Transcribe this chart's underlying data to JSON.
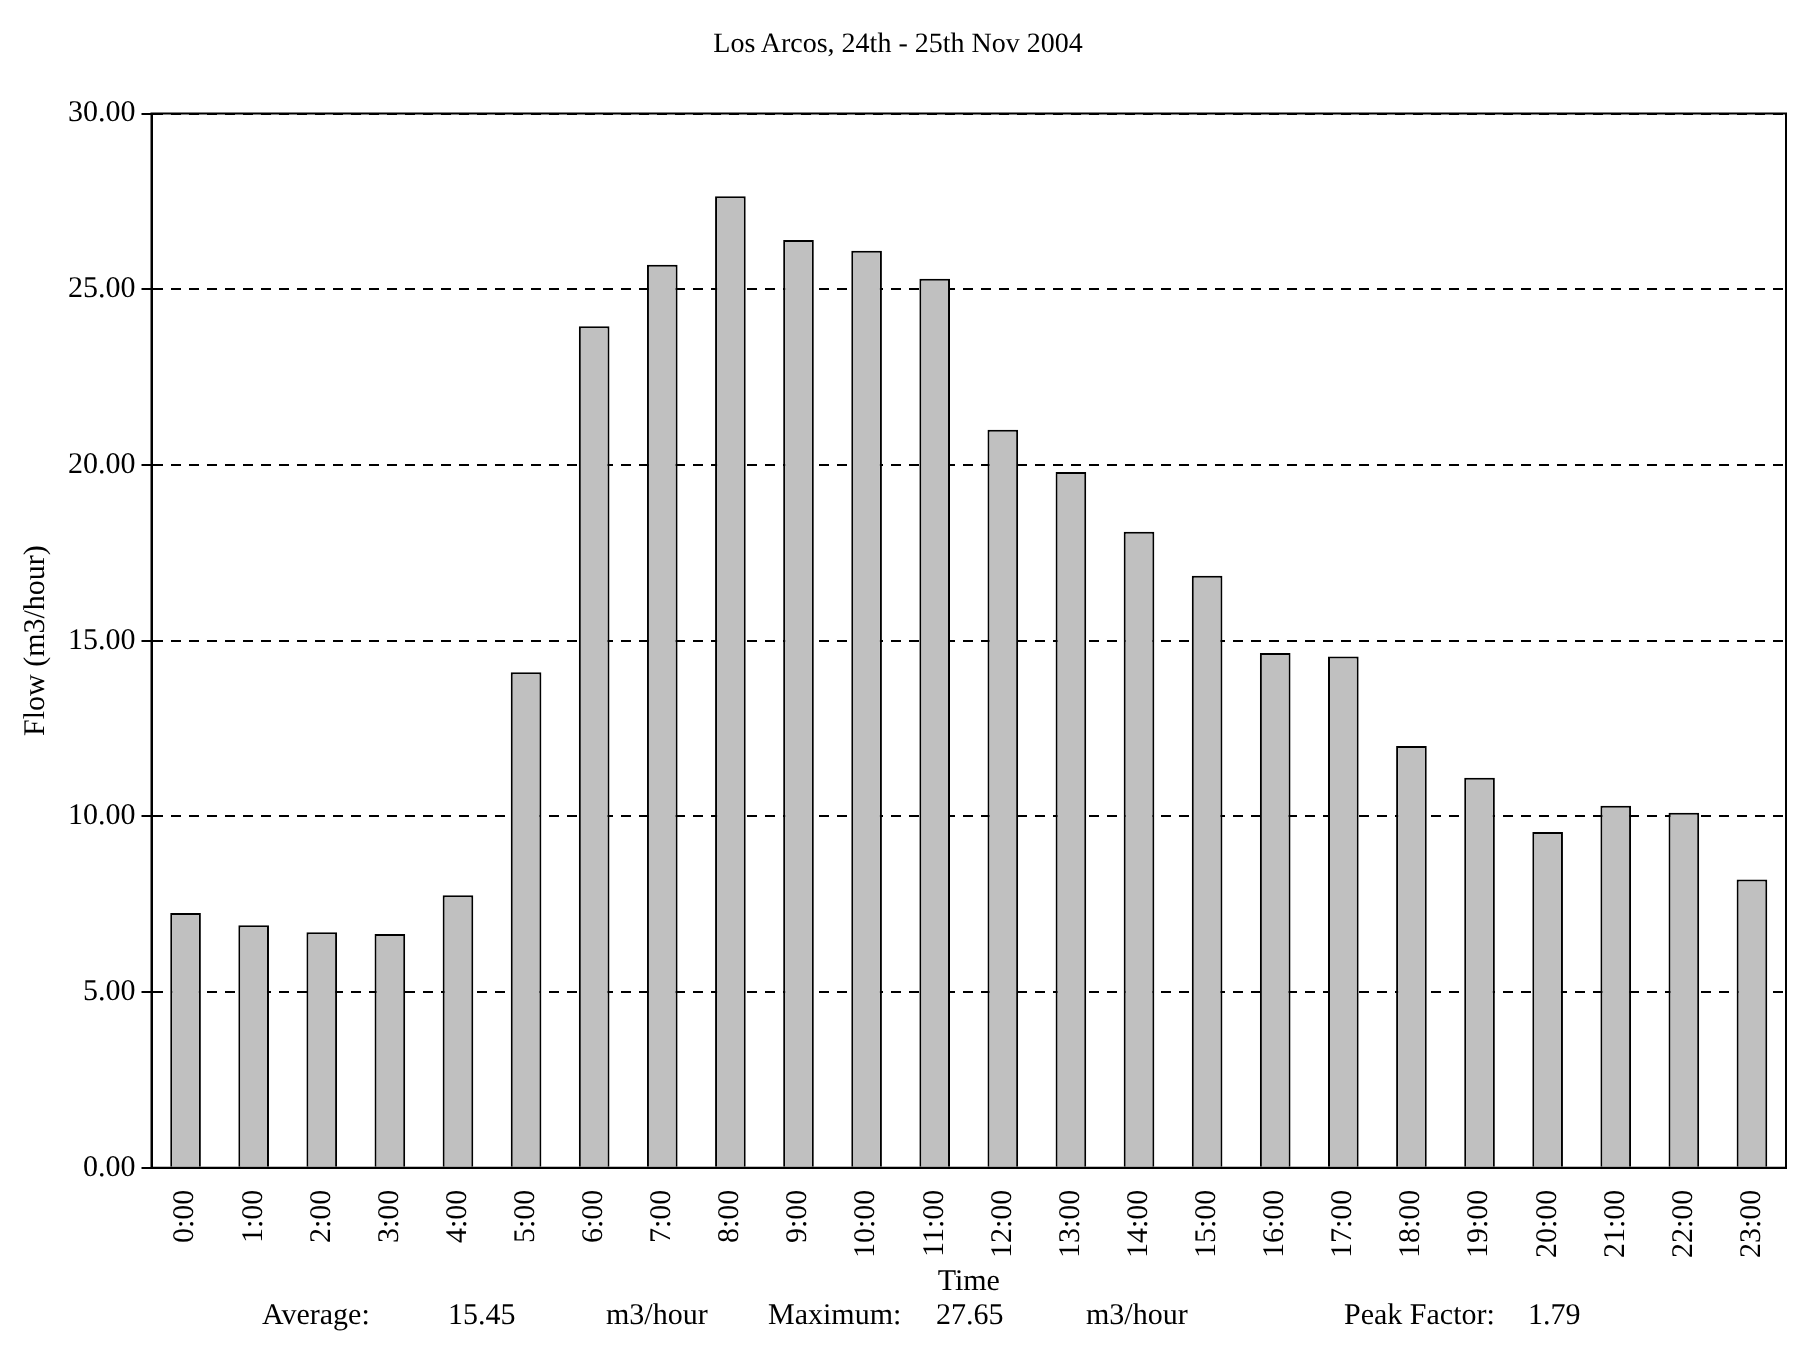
{
  "chart_data": {
    "type": "bar",
    "title": "Los Arcos, 24th - 25th Nov 2004",
    "xlabel": "Time",
    "ylabel": "Flow (m3/hour)",
    "categories": [
      "0:00",
      "1:00",
      "2:00",
      "3:00",
      "4:00",
      "5:00",
      "6:00",
      "7:00",
      "8:00",
      "9:00",
      "10:00",
      "11:00",
      "12:00",
      "13:00",
      "14:00",
      "15:00",
      "16:00",
      "17:00",
      "18:00",
      "19:00",
      "20:00",
      "21:00",
      "22:00",
      "23:00"
    ],
    "values": [
      7.25,
      6.9,
      6.7,
      6.65,
      7.75,
      14.1,
      23.95,
      25.7,
      27.65,
      26.4,
      26.1,
      25.3,
      21.0,
      19.8,
      18.1,
      16.85,
      14.65,
      14.55,
      12.0,
      11.1,
      9.55,
      10.3,
      10.1,
      8.2
    ],
    "color": "#c0c0c0",
    "ylim": [
      0,
      30
    ],
    "yticks": [
      {
        "value": 0,
        "label": "0.00"
      },
      {
        "value": 5,
        "label": "5.00"
      },
      {
        "value": 10,
        "label": "10.00"
      },
      {
        "value": 15,
        "label": "15.00"
      },
      {
        "value": 20,
        "label": "20.00"
      },
      {
        "value": 25,
        "label": "25.00"
      },
      {
        "value": 30,
        "label": "30.00"
      }
    ],
    "grid": "y",
    "legend": false,
    "annotations": [
      "Average:",
      "15.45",
      "m3/hour",
      "Maximum:",
      "27.65",
      "m3/hour",
      "Peak Factor:",
      "1.79"
    ]
  }
}
